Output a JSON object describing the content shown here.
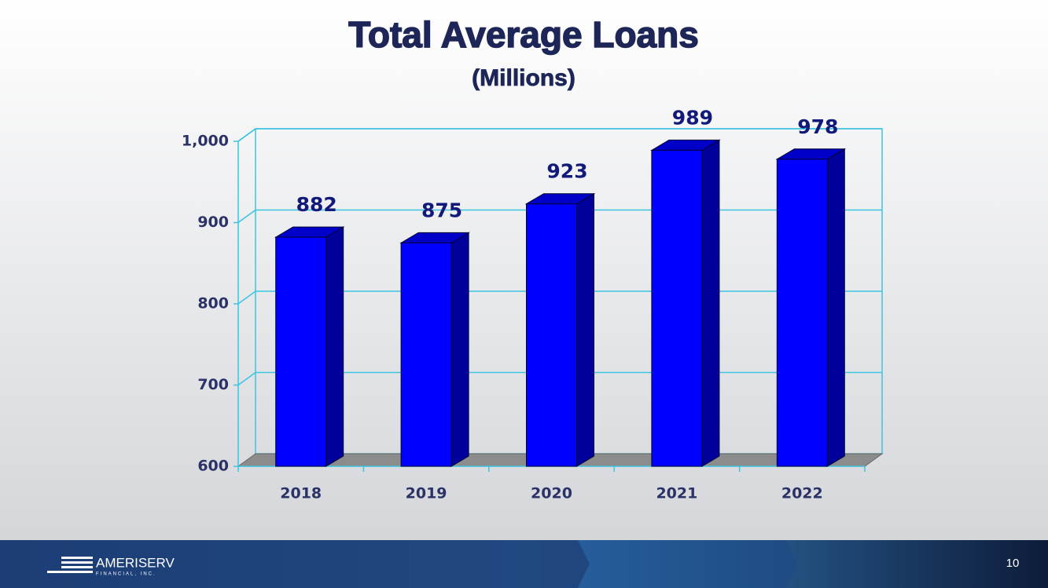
{
  "chart_data": {
    "type": "bar",
    "title": "Total Average Loans",
    "subtitle": "(Millions)",
    "categories": [
      "2018",
      "2019",
      "2020",
      "2021",
      "2022"
    ],
    "values": [
      882,
      875,
      923,
      989,
      978
    ],
    "color": "#0000ff",
    "ylim": [
      600,
      1000
    ],
    "yticks": [
      600,
      700,
      800,
      900,
      {
        "value": 1000,
        "label": "1,000"
      }
    ],
    "grid": true
  },
  "footer": {
    "logo": "AMERISERV",
    "logo_sub": "FINANCIAL, INC.",
    "page_number": "10"
  }
}
